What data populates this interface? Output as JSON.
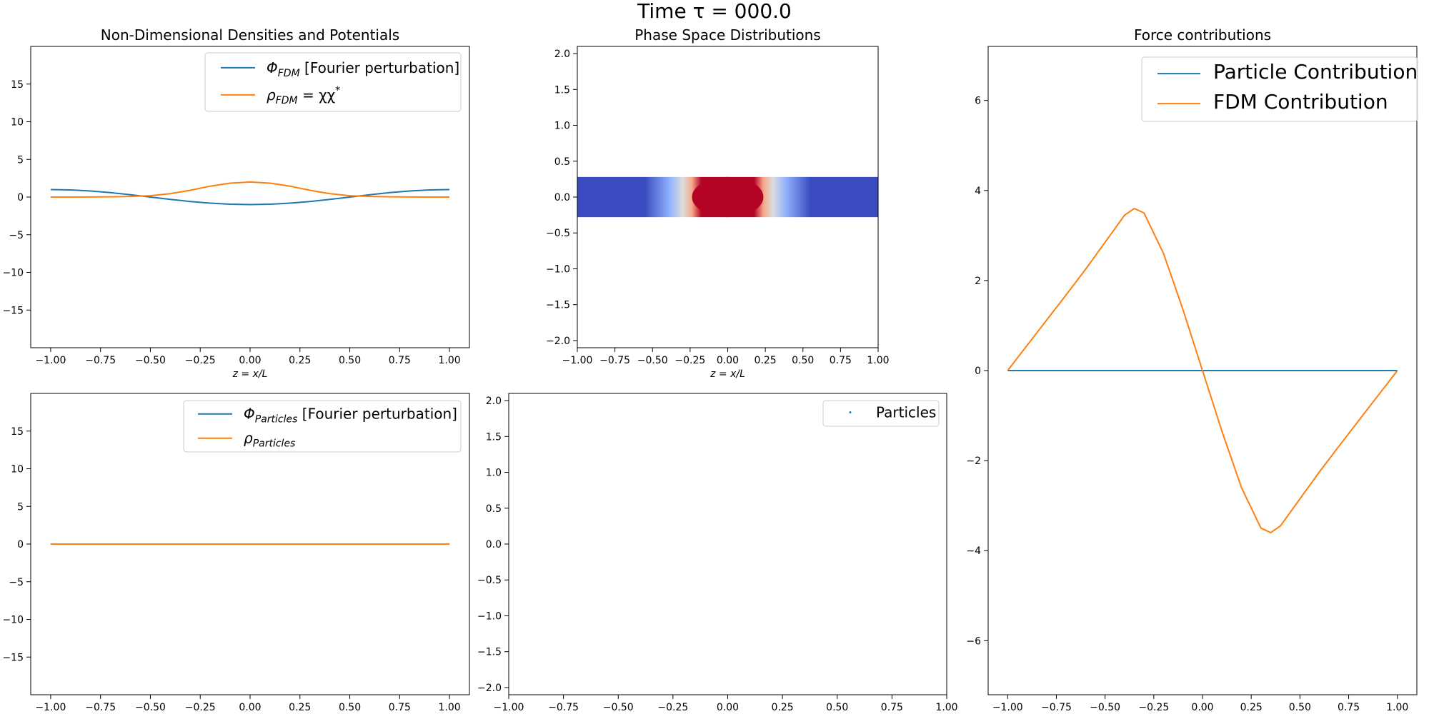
{
  "figure": {
    "suptitle": "Time τ = 000.0"
  },
  "chart_data": [
    {
      "id": "densities",
      "type": "line",
      "title": "Non-Dimensional Densities and Potentials",
      "xlabel": "z = x/L",
      "ylabel": "",
      "xlim": [
        -1.1,
        1.1
      ],
      "ylim": [
        -20,
        20
      ],
      "xticks": [
        -1.0,
        -0.75,
        -0.5,
        -0.25,
        0.0,
        0.25,
        0.5,
        0.75,
        1.0
      ],
      "xtick_labels": [
        "−1.00",
        "−0.75",
        "−0.50",
        "−0.25",
        "0.00",
        "0.25",
        "0.50",
        "0.75",
        "1.00"
      ],
      "yticks": [
        -15,
        -10,
        -5,
        0,
        5,
        10,
        15
      ],
      "ytick_labels": [
        "−15",
        "−10",
        "−5",
        "0",
        "5",
        "10",
        "15"
      ],
      "legend": "top-right",
      "grid": false,
      "x": [
        -1.0,
        -0.9,
        -0.8,
        -0.7,
        -0.6,
        -0.5,
        -0.4,
        -0.3,
        -0.2,
        -0.1,
        0.0,
        0.1,
        0.2,
        0.3,
        0.4,
        0.5,
        0.6,
        0.7,
        0.8,
        0.9,
        1.0
      ],
      "series": [
        {
          "name": "Φ_FDM [Fourier perturbation]",
          "color": "#1f77b4",
          "values": [
            1.0,
            0.95,
            0.81,
            0.59,
            0.31,
            0.0,
            -0.31,
            -0.59,
            -0.81,
            -0.95,
            -1.0,
            -0.95,
            -0.81,
            -0.59,
            -0.31,
            0.0,
            0.31,
            0.59,
            0.81,
            0.95,
            1.0
          ]
        },
        {
          "name": "ρ_FDM = χχ*",
          "color": "#ff7f0e",
          "values": [
            0.0,
            0.0,
            0.01,
            0.03,
            0.08,
            0.18,
            0.45,
            0.9,
            1.45,
            1.85,
            2.0,
            1.85,
            1.45,
            0.9,
            0.45,
            0.18,
            0.08,
            0.03,
            0.01,
            0.0,
            0.0
          ]
        }
      ]
    },
    {
      "id": "phase_space",
      "type": "heatmap",
      "title": "Phase Space Distributions",
      "xlabel": "z = x/L",
      "ylabel": "",
      "xlim": [
        -1.0,
        1.0
      ],
      "ylim": [
        -2.1,
        2.1
      ],
      "xticks": [
        -1.0,
        -0.75,
        -0.5,
        -0.25,
        0.0,
        0.25,
        0.5,
        0.75,
        1.0
      ],
      "xtick_labels": [
        "−1.00",
        "−0.75",
        "−0.50",
        "−0.25",
        "0.00",
        "0.25",
        "0.50",
        "0.75",
        "1.00"
      ],
      "yticks": [
        -2.0,
        -1.5,
        -1.0,
        -0.5,
        0.0,
        0.5,
        1.0,
        1.5,
        2.0
      ],
      "ytick_labels": [
        "−2.0",
        "−1.5",
        "−1.0",
        "−0.5",
        "0.0",
        "0.5",
        "1.0",
        "1.5",
        "2.0"
      ],
      "band_ylim": [
        -0.28,
        0.28
      ],
      "colormap": "coolwarm",
      "low_color": "#3b4cc0",
      "high_color": "#b40426",
      "peak_x": 0.0,
      "peak_halfwidth_x": 0.25
    },
    {
      "id": "forces",
      "type": "line",
      "title": "Force contributions",
      "xlabel": "",
      "ylabel": "",
      "xlim": [
        -1.1,
        1.1
      ],
      "ylim": [
        -7.2,
        7.2
      ],
      "xticks": [
        -1.0,
        -0.75,
        -0.5,
        -0.25,
        0.0,
        0.25,
        0.5,
        0.75,
        1.0
      ],
      "xtick_labels": [
        "−1.00",
        "−0.75",
        "−0.50",
        "−0.25",
        "0.00",
        "0.25",
        "0.50",
        "0.75",
        "1.00"
      ],
      "yticks": [
        -6,
        -4,
        -2,
        0,
        2,
        4,
        6
      ],
      "ytick_labels": [
        "−6",
        "−4",
        "−2",
        "0",
        "2",
        "4",
        "6"
      ],
      "legend": "top-right",
      "grid": false,
      "x": [
        -1.0,
        -0.9,
        -0.8,
        -0.7,
        -0.6,
        -0.5,
        -0.4,
        -0.35,
        -0.3,
        -0.2,
        -0.1,
        0.0,
        0.1,
        0.2,
        0.3,
        0.35,
        0.4,
        0.5,
        0.6,
        0.7,
        0.8,
        0.9,
        1.0
      ],
      "series": [
        {
          "name": "Particle Contribution",
          "color": "#1f77b4",
          "values": [
            0,
            0,
            0,
            0,
            0,
            0,
            0,
            0,
            0,
            0,
            0,
            0,
            0,
            0,
            0,
            0,
            0,
            0,
            0,
            0,
            0,
            0,
            0
          ]
        },
        {
          "name": "FDM Contribution",
          "color": "#ff7f0e",
          "values": [
            0.0,
            0.56,
            1.12,
            1.68,
            2.25,
            2.85,
            3.45,
            3.6,
            3.5,
            2.6,
            1.35,
            0.0,
            -1.35,
            -2.6,
            -3.5,
            -3.6,
            -3.45,
            -2.85,
            -2.25,
            -1.68,
            -1.12,
            -0.56,
            0.0
          ]
        }
      ]
    },
    {
      "id": "particle_densities",
      "type": "line",
      "title": "",
      "xlabel": "",
      "ylabel": "",
      "xlim": [
        -1.1,
        1.1
      ],
      "ylim": [
        -20,
        20
      ],
      "xticks": [
        -1.0,
        -0.75,
        -0.5,
        -0.25,
        0.0,
        0.25,
        0.5,
        0.75,
        1.0
      ],
      "xtick_labels": [
        "−1.00",
        "−0.75",
        "−0.50",
        "−0.25",
        "0.00",
        "0.25",
        "0.50",
        "0.75",
        "1.00"
      ],
      "yticks": [
        -15,
        -10,
        -5,
        0,
        5,
        10,
        15
      ],
      "ytick_labels": [
        "−15",
        "−10",
        "−5",
        "0",
        "5",
        "10",
        "15"
      ],
      "legend": "top-right",
      "grid": false,
      "x": [
        -1.0,
        1.0
      ],
      "series": [
        {
          "name": "Φ_Particles [Fourier perturbation]",
          "color": "#1f77b4",
          "values": [
            0,
            0
          ]
        },
        {
          "name": "ρ_Particles",
          "color": "#ff7f0e",
          "values": [
            0,
            0
          ]
        }
      ]
    },
    {
      "id": "particles",
      "type": "scatter",
      "title": "",
      "xlabel": "",
      "ylabel": "",
      "xlim": [
        -1.0,
        1.0
      ],
      "ylim": [
        -2.1,
        2.1
      ],
      "xticks": [
        -1.0,
        -0.75,
        -0.5,
        -0.25,
        0.0,
        0.25,
        0.5,
        0.75,
        1.0
      ],
      "xtick_labels": [
        "−1.00",
        "−0.75",
        "−0.50",
        "−0.25",
        "0.00",
        "0.25",
        "0.50",
        "0.75",
        "1.00"
      ],
      "yticks": [
        -2.0,
        -1.5,
        -1.0,
        -0.5,
        0.0,
        0.5,
        1.0,
        1.5,
        2.0
      ],
      "ytick_labels": [
        "−2.0",
        "−1.5",
        "−1.0",
        "−0.5",
        "0.0",
        "0.5",
        "1.0",
        "1.5",
        "2.0"
      ],
      "legend": "top-right",
      "grid": false,
      "series": [
        {
          "name": "Particles",
          "color": "#1f77b4",
          "points": []
        }
      ]
    }
  ]
}
